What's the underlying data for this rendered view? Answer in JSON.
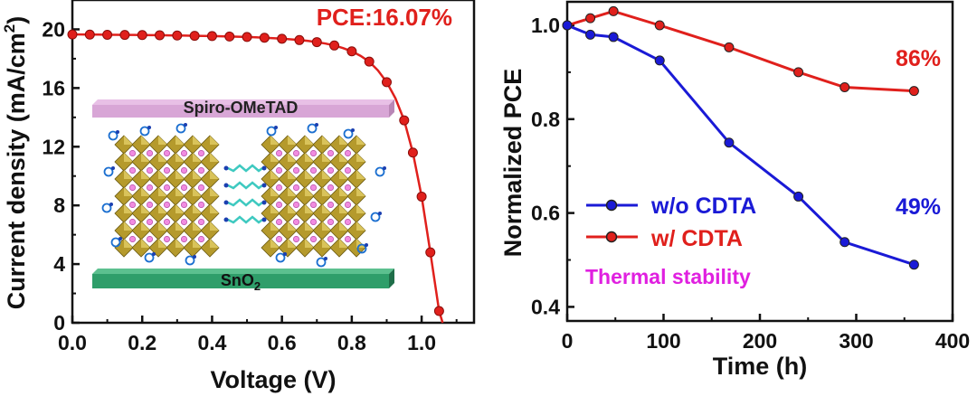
{
  "chart_data": [
    {
      "type": "line",
      "title": "",
      "xlabel": "Voltage (V)",
      "ylabel_main": "Current density (mA/cm",
      "ylabel_sup": "2",
      "ylabel_close": ")",
      "xlim": [
        0,
        1.15
      ],
      "ylim": [
        0,
        22
      ],
      "xticks": [
        "0.0",
        "0.2",
        "0.4",
        "0.6",
        "0.8",
        "1.0"
      ],
      "yticks": [
        "0",
        "4",
        "8",
        "12",
        "16",
        "20"
      ],
      "annotation": "PCE:16.07%",
      "series": [
        {
          "color": "#e0201c",
          "x": [
            0.0,
            0.025,
            0.05,
            0.075,
            0.1,
            0.125,
            0.15,
            0.175,
            0.2,
            0.225,
            0.25,
            0.275,
            0.3,
            0.325,
            0.35,
            0.375,
            0.4,
            0.425,
            0.45,
            0.475,
            0.5,
            0.525,
            0.55,
            0.575,
            0.6,
            0.625,
            0.65,
            0.675,
            0.7,
            0.725,
            0.75,
            0.775,
            0.8,
            0.825,
            0.85,
            0.875,
            0.9,
            0.925,
            0.95,
            0.975,
            1.0,
            1.025,
            1.05,
            1.06
          ],
          "y": [
            19.65,
            19.65,
            19.64,
            19.64,
            19.63,
            19.63,
            19.62,
            19.62,
            19.61,
            19.6,
            19.6,
            19.59,
            19.58,
            19.57,
            19.56,
            19.55,
            19.54,
            19.53,
            19.51,
            19.5,
            19.48,
            19.46,
            19.43,
            19.4,
            19.36,
            19.32,
            19.27,
            19.21,
            19.13,
            19.03,
            18.9,
            18.72,
            18.5,
            18.2,
            17.8,
            17.2,
            16.4,
            15.3,
            13.8,
            11.6,
            8.6,
            4.8,
            0.8,
            0
          ]
        }
      ],
      "inset": {
        "top_layer": "Spiro-OMeTAD",
        "bottom_layer_main": "SnO",
        "bottom_layer_sub": "2",
        "top_color": "#d8a6d6",
        "bottom_color": "#2f9e6a"
      }
    },
    {
      "type": "line",
      "title": "",
      "xlabel": "Time (h)",
      "ylabel": "Normalized PCE",
      "xlim": [
        0,
        400
      ],
      "ylim": [
        0.37,
        1.05
      ],
      "xticks": [
        "0",
        "100",
        "200",
        "300",
        "400"
      ],
      "yticks": [
        "0.4",
        "0.6",
        "0.8",
        "1.0"
      ],
      "annotation": "Thermal stability",
      "annotation_color": "#e020e0",
      "series": [
        {
          "name": "w/o CDTA",
          "color": "#1a1ad6",
          "x": [
            0,
            24,
            48,
            96,
            168,
            240,
            288,
            360
          ],
          "y": [
            1.0,
            0.98,
            0.975,
            0.925,
            0.75,
            0.635,
            0.538,
            0.49
          ],
          "end_label": "49%"
        },
        {
          "name": "w/ CDTA",
          "color": "#e0201c",
          "x": [
            0,
            24,
            48,
            96,
            168,
            240,
            288,
            360
          ],
          "y": [
            1.0,
            1.015,
            1.03,
            1.0,
            0.953,
            0.9,
            0.868,
            0.86
          ],
          "end_label": "86%"
        }
      ]
    }
  ]
}
